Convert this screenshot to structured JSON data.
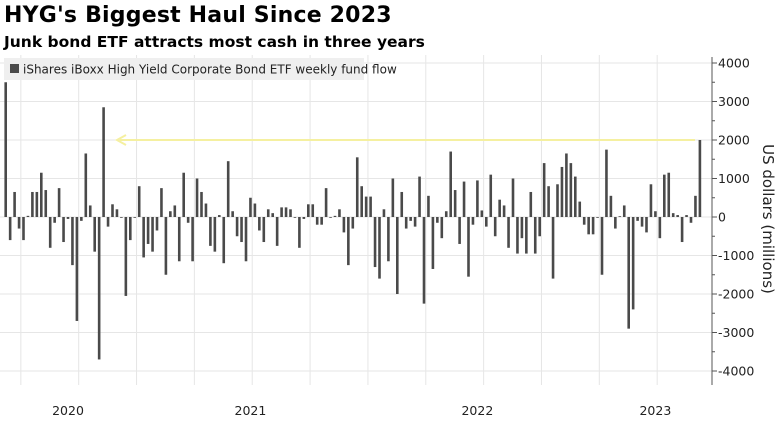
{
  "chart_data": {
    "type": "bar",
    "title": "HYG's Biggest Haul Since 2023",
    "subtitle": "Junk bond ETF attracts most cash in three years",
    "legend": [
      {
        "name": "iShares iBoxx High Yield Corporate Bond ETF weekly fund flow",
        "color": "#4a4a4a"
      }
    ],
    "legend_placement": "top-left",
    "ylabel": "US dollars (millions)",
    "ylim": [
      -4000,
      4000
    ],
    "yticks": [
      4000,
      3000,
      2000,
      1000,
      0,
      -1000,
      -2000,
      -3000,
      -4000
    ],
    "y_axis_side": "right",
    "grid": true,
    "x_year_labels": [
      {
        "label": "2020",
        "at_week_index": 14
      },
      {
        "label": "2021",
        "at_week_index": 55
      },
      {
        "label": "2022",
        "at_week_index": 106
      },
      {
        "label": "2023",
        "at_week_index": 146
      }
    ],
    "annotation": {
      "type": "arrow-line",
      "y": 2000,
      "color": "#f5f0a0"
    },
    "bar_color": "#4a4a4a",
    "series": [
      {
        "name": "iShares iBoxx High Yield Corporate Bond ETF weekly fund flow",
        "values": [
          3500,
          -600,
          650,
          -300,
          -600,
          30,
          650,
          650,
          1150,
          700,
          -800,
          -150,
          750,
          -650,
          -50,
          -1250,
          -2700,
          -100,
          1650,
          300,
          -900,
          -3700,
          2850,
          -250,
          330,
          200,
          -20,
          -2050,
          -600,
          -20,
          800,
          -1050,
          -700,
          -900,
          -350,
          750,
          -1500,
          150,
          300,
          -1150,
          1150,
          -150,
          -1150,
          1000,
          650,
          350,
          -750,
          -900,
          50,
          -1200,
          1450,
          150,
          -500,
          -650,
          -1150,
          500,
          350,
          -350,
          -650,
          200,
          100,
          -750,
          250,
          250,
          200,
          -20,
          -800,
          -50,
          330,
          330,
          -200,
          -200,
          750,
          -20,
          30,
          200,
          -400,
          -1250,
          -300,
          1550,
          800,
          530,
          530,
          -1300,
          -1600,
          200,
          -1150,
          1000,
          -2000,
          650,
          -300,
          -100,
          -250,
          1050,
          -2250,
          550,
          -1350,
          -150,
          -550,
          150,
          1700,
          700,
          -700,
          920,
          -1550,
          -200,
          950,
          170,
          -250,
          1100,
          -500,
          450,
          300,
          -800,
          1000,
          -950,
          -550,
          -950,
          650,
          -950,
          -500,
          1400,
          800,
          -1600,
          850,
          1300,
          1650,
          1400,
          1050,
          400,
          -200,
          -450,
          -450,
          -20,
          -1500,
          1750,
          550,
          -300,
          20,
          300,
          -2900,
          -2400,
          -100,
          -250,
          -400,
          850,
          150,
          -550,
          1100,
          1150,
          100,
          50,
          -650,
          50,
          -150,
          550,
          2000
        ]
      }
    ]
  }
}
